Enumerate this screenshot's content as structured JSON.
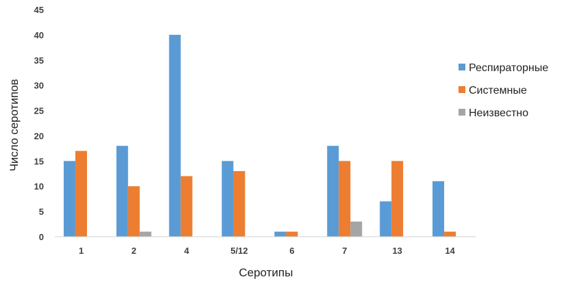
{
  "chart_data": {
    "type": "bar",
    "title": "",
    "xlabel": "Серотипы",
    "ylabel": "Число серотипов",
    "categories": [
      "1",
      "2",
      "4",
      "5/12",
      "6",
      "7",
      "13",
      "14"
    ],
    "series": [
      {
        "name": "Респираторные",
        "color": "#5b9bd5",
        "values": [
          15,
          18,
          40,
          15,
          1,
          18,
          7,
          11
        ]
      },
      {
        "name": "Системные",
        "color": "#ed7d31",
        "values": [
          17,
          10,
          12,
          13,
          1,
          15,
          15,
          1
        ]
      },
      {
        "name": "Неизвестно",
        "color": "#a5a5a5",
        "values": [
          0,
          1,
          0,
          0,
          0,
          3,
          0,
          0
        ]
      }
    ],
    "yticks": [
      "0",
      "5",
      "10",
      "15",
      "20",
      "25",
      "30",
      "35",
      "40",
      "45"
    ],
    "ylim": [
      0,
      45
    ],
    "grid": false,
    "legend_position": "right"
  }
}
